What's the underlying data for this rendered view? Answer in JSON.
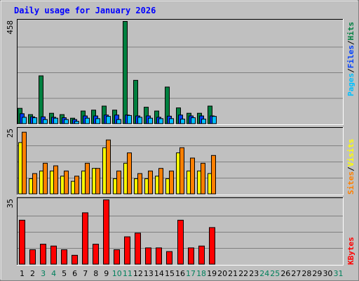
{
  "chart_data": {
    "type": "bar",
    "title": "Daily usage for January 2026",
    "days": [
      "1",
      "2",
      "3",
      "4",
      "5",
      "6",
      "7",
      "8",
      "9",
      "10",
      "11",
      "12",
      "13",
      "14",
      "15",
      "16",
      "17",
      "18",
      "19",
      "20",
      "21",
      "22",
      "23",
      "24",
      "25",
      "26",
      "27",
      "28",
      "29",
      "30",
      "31"
    ],
    "weekend_days": [
      "3",
      "4",
      "10",
      "11",
      "17",
      "18",
      "24",
      "25",
      "31"
    ],
    "panels": [
      {
        "name": "hits-files-pages",
        "max_label": "458",
        "ymax": 458,
        "series": [
          {
            "name": "Hits",
            "color": "#008040",
            "values": [
              70,
              42,
              215,
              48,
              42,
              26,
              58,
              62,
              80,
              62,
              458,
              195,
              75,
              58,
              165,
              72,
              48,
              48,
              80
            ]
          },
          {
            "name": "Files",
            "color": "#0040ff",
            "values": [
              46,
              32,
              32,
              30,
              28,
              20,
              36,
              36,
              40,
              40,
              40,
              36,
              36,
              30,
              35,
              40,
              36,
              36,
              36
            ]
          },
          {
            "name": "Pages",
            "color": "#00c0ff",
            "values": [
              30,
              28,
              20,
              26,
              20,
              12,
              26,
              24,
              34,
              20,
              38,
              30,
              26,
              24,
              24,
              22,
              28,
              22,
              34
            ]
          }
        ]
      },
      {
        "name": "visits-sites",
        "max_label": "25",
        "ymax": 25,
        "series": [
          {
            "name": "Visits",
            "color": "#ffff00",
            "values": [
              20,
              6,
              9,
              9,
              7,
              5,
              9,
              10,
              18,
              6,
              12,
              6,
              6,
              7,
              6,
              16,
              9,
              9,
              8
            ]
          },
          {
            "name": "Sites",
            "color": "#ff8000",
            "values": [
              24,
              8,
              12,
              11,
              9,
              7,
              12,
              10,
              21,
              9,
              16,
              8,
              9,
              10,
              9,
              18,
              14,
              12,
              15
            ]
          }
        ]
      },
      {
        "name": "kbytes",
        "max_label": "35",
        "ymax": 35,
        "series": [
          {
            "name": "KBytes",
            "color": "#ff0000",
            "values": [
              24,
              8,
              11,
              10,
              8,
              5,
              28,
              11,
              35,
              8,
              15,
              17,
              9,
              9,
              7,
              24,
              9,
              10,
              20
            ]
          }
        ]
      }
    ],
    "legend_right": {
      "top": [
        "Pages",
        "/",
        "Files",
        "/",
        "Hits"
      ],
      "middle": [
        "Sites",
        "/",
        "Visits"
      ],
      "bottom": [
        "KBytes"
      ]
    },
    "legend_colors": {
      "Pages": "#00c0ff",
      "Files": "#0040ff",
      "Hits": "#008040",
      "Sites": "#ff8000",
      "Visits": "#ffff00",
      "KBytes": "#ff0000",
      "slash": "#000000"
    },
    "colors": {
      "background": "#c0c0c0",
      "plot": "#c0c0c0",
      "grid": "#808080",
      "title": "#0000ff",
      "weekday_label": "#000000",
      "weekend_label": "#00805c"
    }
  }
}
